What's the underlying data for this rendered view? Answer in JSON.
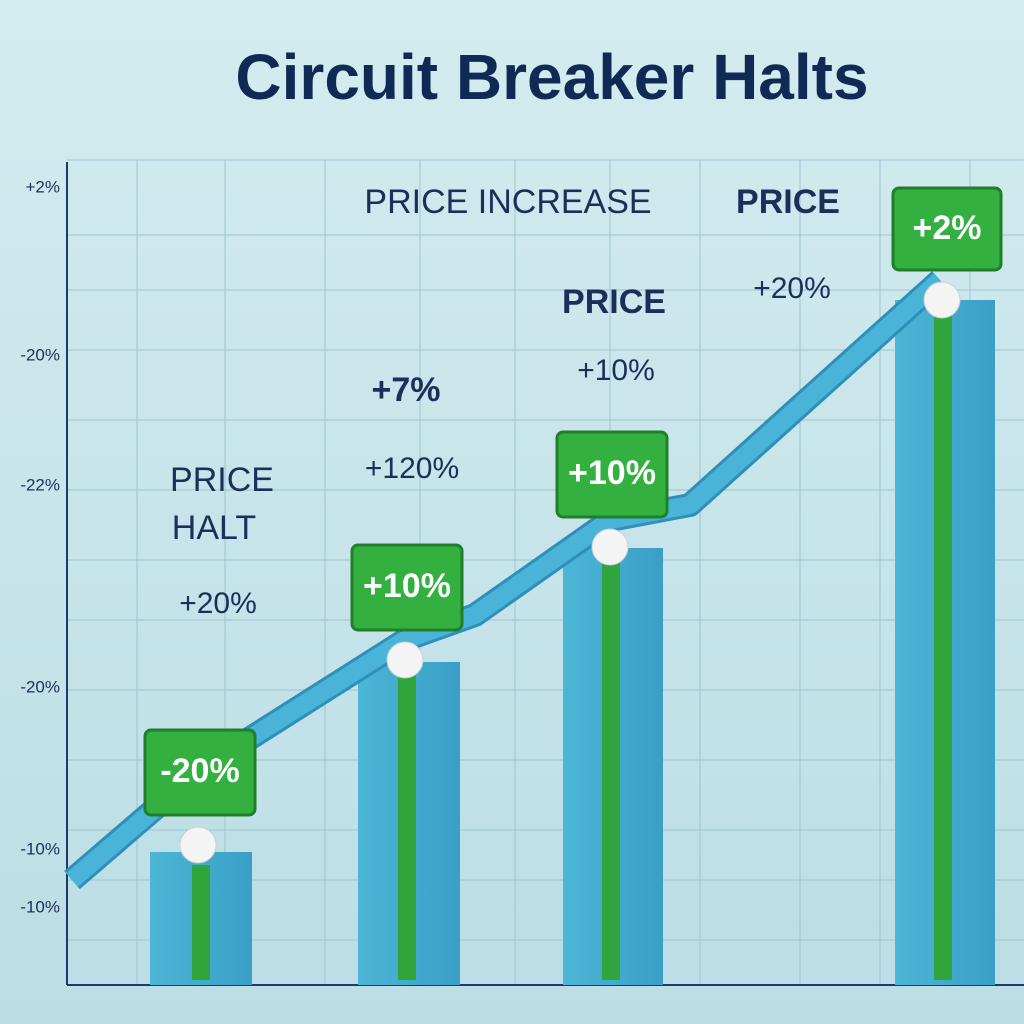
{
  "header": {
    "title": "Circuit Breaker Halts"
  },
  "axis_labels": [
    "+2%",
    "-20%",
    "-22%",
    "-20%",
    "-10%",
    "-10%"
  ],
  "annotations": [
    {
      "lines": [
        "PRICE",
        "HALT"
      ],
      "value": "+20%"
    },
    {
      "heading": "+7%",
      "value": "+120%"
    },
    {
      "lines": [
        "PRICE INCREASE"
      ]
    },
    {
      "lines": [
        "PRICE"
      ],
      "value": "+10%"
    },
    {
      "lines": [
        "PRICE"
      ],
      "value": "+20%"
    }
  ],
  "badges": [
    "-20%",
    "+10%",
    "+10%",
    "+2%"
  ]
}
